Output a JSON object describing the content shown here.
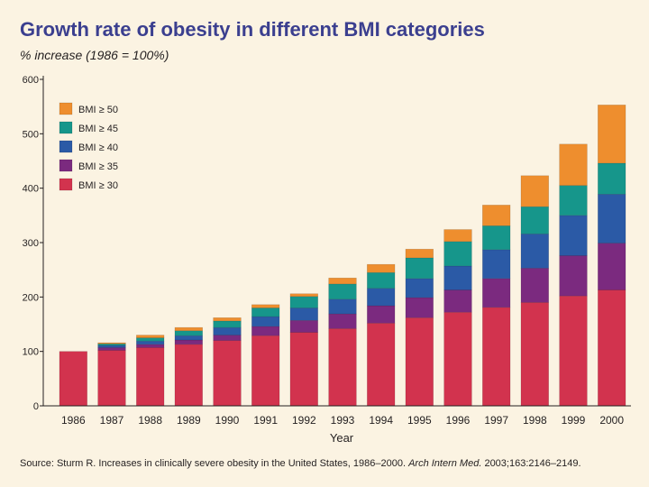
{
  "title": "Growth rate of obesity in different BMI categories",
  "subtitle": "% increase (1986 = 100%)",
  "source": {
    "prefix": "Source: Sturm R. Increases in clinically severe obesity in the United States, 1986–2000. ",
    "journal": "Arch Intern Med.",
    "suffix": " 2003;163:2146–2149."
  },
  "colors": {
    "bmi30": "#d2334e",
    "bmi35": "#7b2a7f",
    "bmi40": "#2b5aa6",
    "bmi45": "#16968b",
    "bmi50": "#ee8e2e",
    "background": "#fbf3e2"
  },
  "chart_data": {
    "type": "bar",
    "stacked": true,
    "xlabel": "Year",
    "ylabel": "",
    "ylim": [
      0,
      600
    ],
    "yticks": [
      0,
      100,
      200,
      300,
      400,
      500,
      600
    ],
    "legend_position": "top-left",
    "categories": [
      "1986",
      "1987",
      "1988",
      "1989",
      "1990",
      "1991",
      "1992",
      "1993",
      "1994",
      "1995",
      "1996",
      "1997",
      "1998",
      "1999",
      "2000"
    ],
    "series": [
      {
        "name": "BMI ≥ 30",
        "color": "#d2334e",
        "values": [
          100,
          102,
          107,
          113,
          120,
          129,
          135,
          142,
          152,
          162,
          172,
          181,
          190,
          202,
          213
        ]
      },
      {
        "name": "BMI ≥ 35",
        "color": "#7b2a7f",
        "values": [
          0,
          5,
          6,
          8,
          10,
          17,
          22,
          27,
          32,
          37,
          41,
          53,
          63,
          74,
          86
        ]
      },
      {
        "name": "BMI ≥ 40",
        "color": "#2b5aa6",
        "values": [
          0,
          4,
          6,
          8,
          14,
          18,
          23,
          27,
          32,
          35,
          44,
          53,
          63,
          74,
          90
        ]
      },
      {
        "name": "BMI ≥ 45",
        "color": "#16968b",
        "values": [
          0,
          3,
          6,
          9,
          12,
          16,
          21,
          28,
          29,
          38,
          45,
          44,
          50,
          55,
          57
        ]
      },
      {
        "name": "BMI ≥ 50",
        "color": "#ee8e2e",
        "values": [
          0,
          2,
          5,
          6,
          6,
          6,
          5,
          11,
          15,
          16,
          22,
          38,
          57,
          76,
          107
        ]
      }
    ]
  }
}
